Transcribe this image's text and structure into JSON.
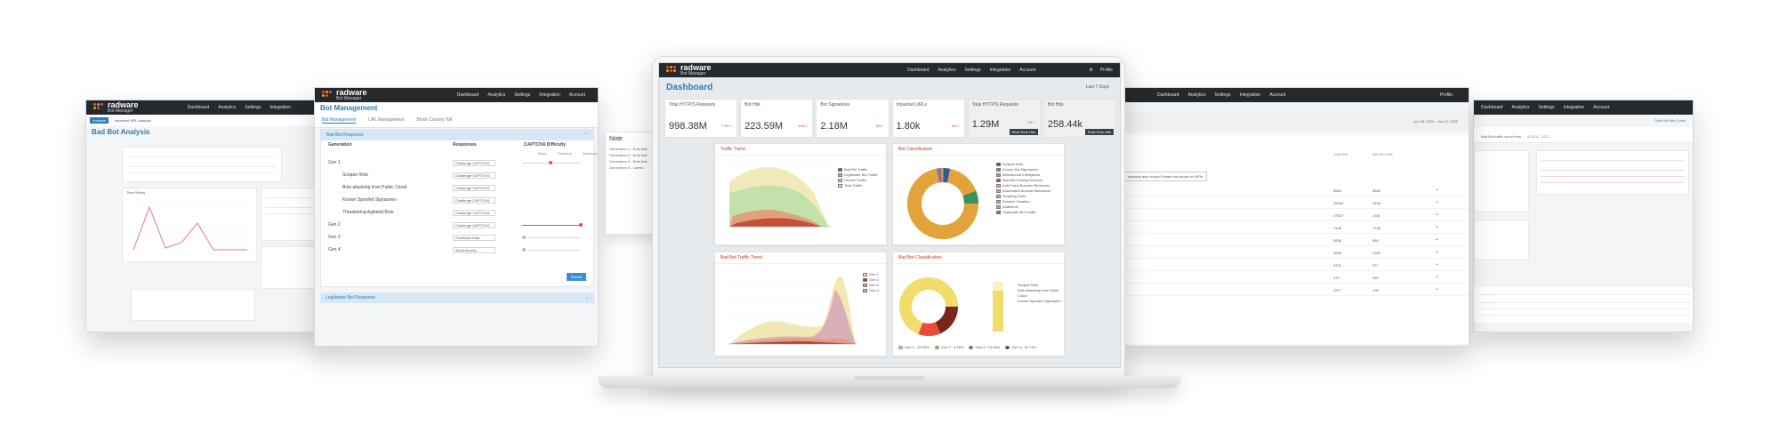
{
  "brand": {
    "name": "radware",
    "product": "Bot Manager"
  },
  "nav": [
    "Dashboard",
    "Analytics",
    "Settings",
    "Integration",
    "Account"
  ],
  "profile": "Profile",
  "far_left": {
    "title": "Bad Bot Analysis",
    "tabs": [
      "Analysis",
      "Impacted URL Analysis"
    ],
    "chart_title": "Time Series"
  },
  "mid_left": {
    "title": "Bot Management",
    "tabs": [
      "Bot Management",
      "URL Management",
      "Block Country Toll"
    ],
    "section": "Bad Bot Response",
    "columns": [
      "Generation",
      "Responses",
      "CAPTCHA Difficulty"
    ],
    "difficulty_labels": [
      "Basic",
      "Standard",
      "Advanced"
    ],
    "rows": [
      {
        "label": "Gen 1",
        "response": "Challenge CAPTCHA"
      },
      {
        "label": "Scraper Bots",
        "response": "Challenge CAPTCHA"
      },
      {
        "label": "Bots attacking from Public Cloud",
        "response": "Challenge CAPTCHA"
      },
      {
        "label": "Known Spoofed Signatures",
        "response": "Challenge CAPTCHA"
      },
      {
        "label": "Threatening Agitated Bots",
        "response": "Challenge CAPTCHA"
      },
      {
        "label": "Gen 2",
        "response": "Challenge CAPTCHA"
      },
      {
        "label": "Gen 3",
        "response": "Feedback Data"
      },
      {
        "label": "Gen 4",
        "response": "Block Access"
      }
    ],
    "submit": "Submit",
    "section2": "Legitimate Bot Response",
    "note_title": "Note",
    "note_lines": [
      "Generation 1 - Bots that...",
      "Generation 2 - Bots that...",
      "Generation 3 - Bots that...",
      "Generation 4 - Latest..."
    ]
  },
  "dashboard": {
    "title": "Dashboard",
    "filter": "Last 7 Days",
    "metrics": [
      {
        "label": "Total HTTP/S Requests",
        "value": "998.38M",
        "delta": "7.2% ↑",
        "delta_color": "blue"
      },
      {
        "label": "Bot Hits",
        "value": "223.59M",
        "delta": "12% ↑",
        "delta_color": "red"
      },
      {
        "label": "Bot Signatures",
        "value": "2.18M",
        "delta": "5% ↑",
        "delta_color": "red"
      },
      {
        "label": "Impacted URLs",
        "value": "1.80k",
        "delta": "3% ↑",
        "delta_color": "red"
      },
      {
        "label": "Total HTTP/S Requests",
        "value": "1.29M",
        "delta": "7% ↑",
        "delta_color": "red",
        "badge": "Real-Time Hits"
      },
      {
        "label": "Bot Hits",
        "value": "258.44k",
        "delta": "",
        "delta_color": "red",
        "badge": "Real-Time Hits"
      }
    ],
    "traffic_trend": {
      "title": "Traffic Trend",
      "legend": [
        "Bad Bot Traffic",
        "Legitimate Bot Traffic",
        "Human Traffic",
        "Total Traffic"
      ]
    },
    "bot_classification": {
      "title": "Bot Classification",
      "legend": [
        "Scraper Bots",
        "Known Bot Signatures",
        "Behavioural Intelligence",
        "Bad Bot Hosting Services",
        "Anti-Fraud Browser Behaviour",
        "Automated Browser Behaviour",
        "Scraping Tools",
        "Session Violation",
        "Additional",
        "Legitimate Bot Traffic"
      ]
    },
    "bad_bot_trend": {
      "title": "Bad Bot Traffic Trend",
      "legend": [
        "Gen 1",
        "Gen 2",
        "Gen 3",
        "Gen 4"
      ]
    },
    "bad_bot_classification": {
      "title": "Bad Bot Classification",
      "legend": [
        "Scraper Bots",
        "Bots attacking from Public Cloud",
        "Known Spoofed Signatures"
      ],
      "bottom_legend": [
        "Gen 1 : 33.25%",
        "Gen 2 : 4.18%",
        "Gen 3 : 13.45%",
        "Gen 4 : 39.71%"
      ]
    }
  },
  "mid_right": {
    "date_range": "Jun 05, 2020 - Jun 12, 2020",
    "tooltip": "Injection also shows Posted bot impact on APIs",
    "columns": [
      "Total Hits",
      "Bad Bot Hits"
    ],
    "rows": [
      [
        "8562",
        "3850"
      ],
      [
        "25938",
        "2639"
      ],
      [
        "47927",
        "1781"
      ],
      [
        "7148",
        "7148"
      ],
      [
        "5536",
        "556"
      ],
      [
        "4525",
        "1146"
      ],
      [
        "3372",
        "377"
      ],
      [
        "373",
        "330"
      ],
      [
        "4377",
        "108"
      ]
    ]
  },
  "far_right": {
    "title": "Bad Bot traffic count from",
    "ip": "3.1.0.4 - 2.2.2",
    "side_title": "Total Bot Hits Count"
  }
}
